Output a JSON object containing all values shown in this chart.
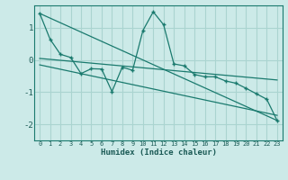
{
  "xlabel": "Humidex (Indice chaleur)",
  "ylabel": "",
  "background_color": "#cceae8",
  "grid_color": "#aad4d0",
  "line_color": "#1a7a6e",
  "xlim": [
    -0.5,
    23.5
  ],
  "ylim": [
    -2.5,
    1.7
  ],
  "yticks": [
    -2,
    -1,
    0,
    1
  ],
  "xticks": [
    0,
    1,
    2,
    3,
    4,
    5,
    6,
    7,
    8,
    9,
    10,
    11,
    12,
    13,
    14,
    15,
    16,
    17,
    18,
    19,
    20,
    21,
    22,
    23
  ],
  "series": [
    [
      0,
      1.45
    ],
    [
      1,
      0.65
    ],
    [
      2,
      0.18
    ],
    [
      3,
      0.08
    ],
    [
      4,
      -0.42
    ],
    [
      5,
      -0.27
    ],
    [
      6,
      -0.28
    ],
    [
      7,
      -0.98
    ],
    [
      8,
      -0.22
    ],
    [
      9,
      -0.32
    ],
    [
      10,
      0.92
    ],
    [
      11,
      1.5
    ],
    [
      12,
      1.1
    ],
    [
      13,
      -0.12
    ],
    [
      14,
      -0.18
    ],
    [
      15,
      -0.45
    ],
    [
      16,
      -0.52
    ],
    [
      17,
      -0.52
    ],
    [
      18,
      -0.65
    ],
    [
      19,
      -0.72
    ],
    [
      20,
      -0.88
    ],
    [
      21,
      -1.05
    ],
    [
      22,
      -1.22
    ],
    [
      23,
      -1.88
    ]
  ],
  "line1": [
    [
      0,
      1.45
    ],
    [
      23,
      -1.88
    ]
  ],
  "line2": [
    [
      0,
      0.05
    ],
    [
      23,
      -0.62
    ]
  ],
  "line3": [
    [
      0,
      -0.15
    ],
    [
      23,
      -1.72
    ]
  ]
}
